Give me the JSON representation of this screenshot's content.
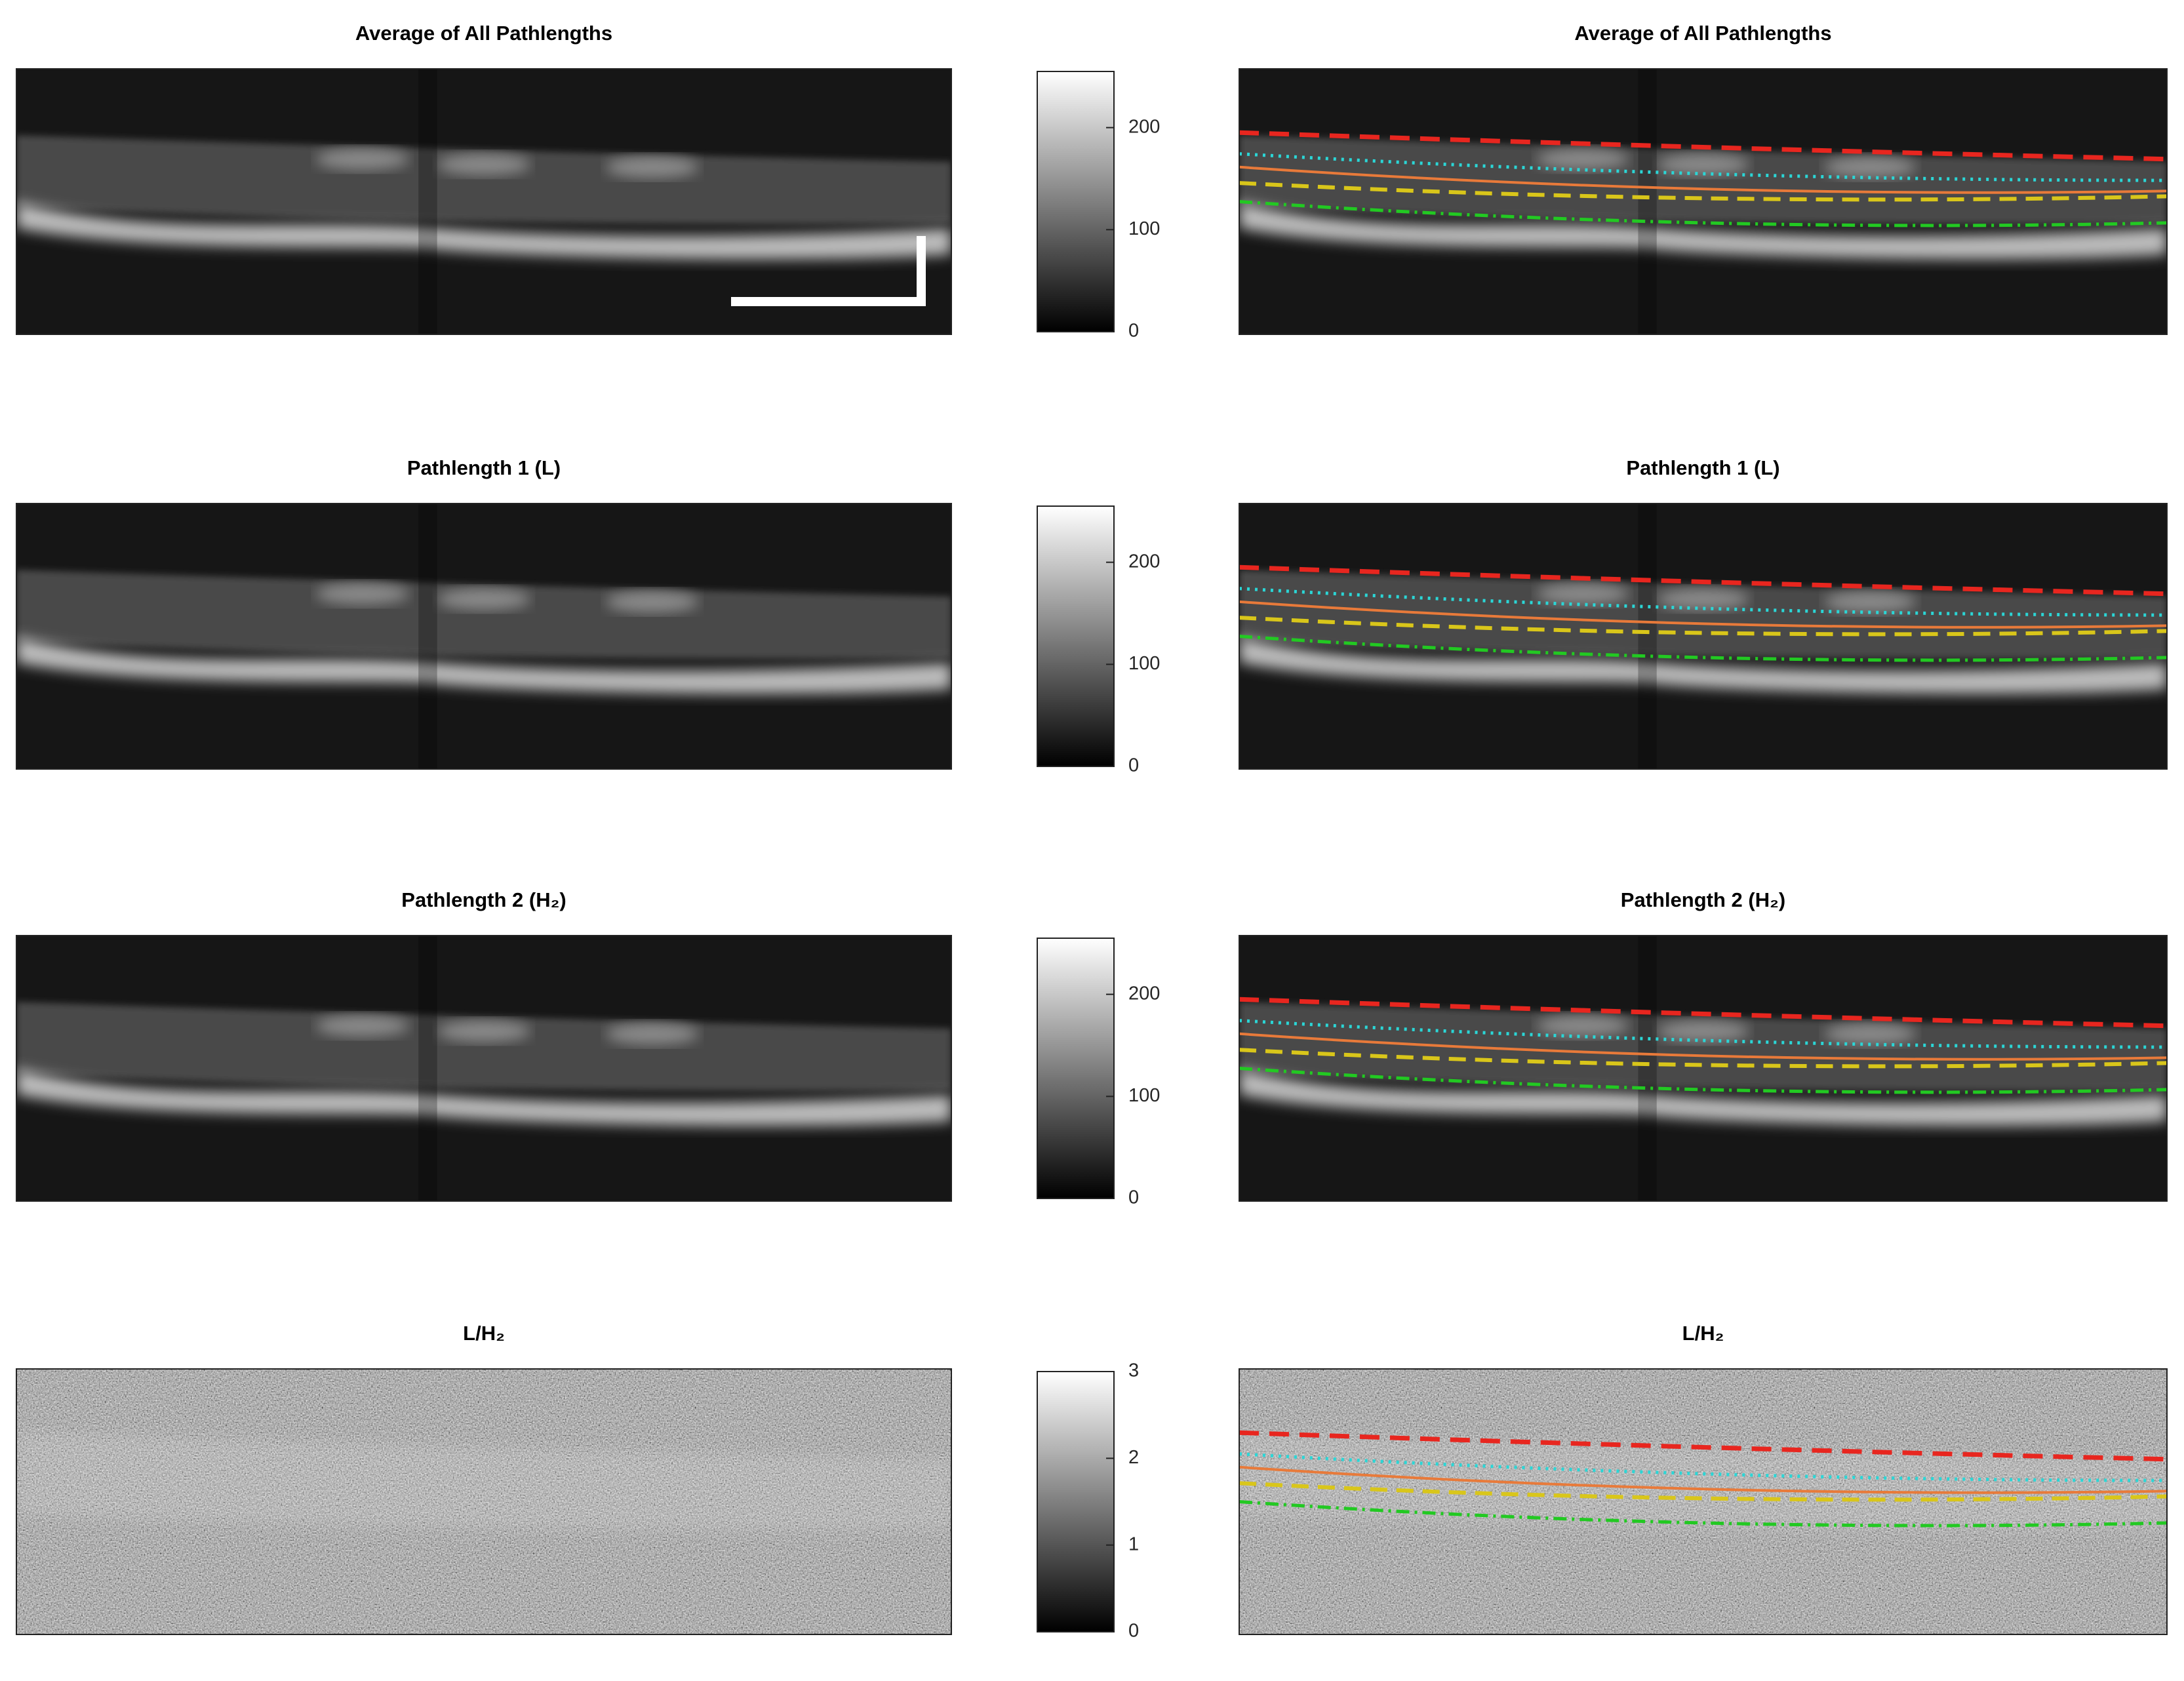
{
  "chart_data": [
    {
      "type": "heatmap",
      "title": "Average of All Pathlengths",
      "ylim": [
        0,
        255
      ],
      "yticks": [
        0,
        100,
        200
      ]
    },
    {
      "type": "heatmap",
      "title": "Pathlength 1 (L)",
      "ylim": [
        0,
        255
      ],
      "yticks": [
        0,
        100,
        200
      ]
    },
    {
      "type": "heatmap",
      "title": "Pathlength 2 (H₂)",
      "ylim": [
        0,
        255
      ],
      "yticks": [
        0,
        100,
        200
      ]
    },
    {
      "type": "heatmap",
      "title": "L/H₂",
      "ylim": [
        0,
        3
      ],
      "yticks": [
        0,
        1,
        2,
        3
      ]
    }
  ]
}
